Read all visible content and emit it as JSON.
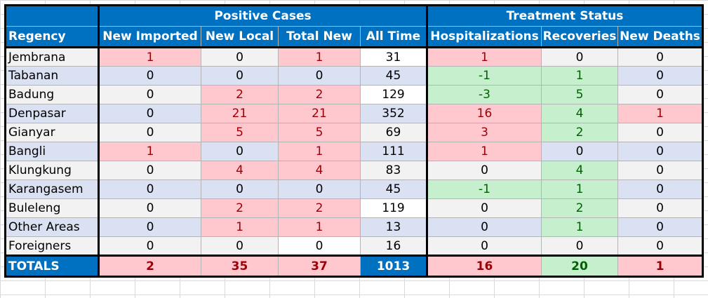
{
  "header": {
    "positive_cases": "Positive Cases",
    "treatment_status": "Treatment Status"
  },
  "columns": [
    "Regency",
    "New Imported",
    "New Local",
    "Total New",
    "All Time",
    "Hospitalizations",
    "Recoveries",
    "New Deaths"
  ],
  "rows": [
    {
      "regency": "Jembrana",
      "values": [
        "1",
        "0",
        "1",
        "31",
        "1",
        "0",
        "0"
      ]
    },
    {
      "regency": "Tabanan",
      "values": [
        "0",
        "0",
        "0",
        "45",
        "-1",
        "1",
        "0"
      ]
    },
    {
      "regency": "Badung",
      "values": [
        "0",
        "2",
        "2",
        "129",
        "-3",
        "5",
        "0"
      ]
    },
    {
      "regency": "Denpasar",
      "values": [
        "0",
        "21",
        "21",
        "352",
        "16",
        "4",
        "1"
      ]
    },
    {
      "regency": "Gianyar",
      "values": [
        "0",
        "5",
        "5",
        "69",
        "3",
        "2",
        "0"
      ]
    },
    {
      "regency": "Bangli",
      "values": [
        "1",
        "0",
        "1",
        "111",
        "1",
        "0",
        "0"
      ]
    },
    {
      "regency": "Klungkung",
      "values": [
        "0",
        "4",
        "4",
        "83",
        "0",
        "4",
        "0"
      ]
    },
    {
      "regency": "Karangasem",
      "values": [
        "0",
        "0",
        "0",
        "45",
        "-1",
        "1",
        "0"
      ]
    },
    {
      "regency": "Buleleng",
      "values": [
        "0",
        "2",
        "2",
        "119",
        "0",
        "2",
        "0"
      ]
    },
    {
      "regency": "Other Areas",
      "values": [
        "0",
        "1",
        "1",
        "13",
        "0",
        "1",
        "0"
      ]
    },
    {
      "regency": "Foreigners",
      "values": [
        "0",
        "0",
        "0",
        "16",
        "0",
        "0",
        "0"
      ]
    }
  ],
  "totals": {
    "label": "TOTALS",
    "values": [
      "2",
      "35",
      "37",
      "1013",
      "16",
      "20",
      "1"
    ]
  },
  "colors": {
    "header_blue": "#0070c0",
    "row_grey": "#f2f2f2",
    "row_blue": "#d9e1f2",
    "highlight_red_fill": "#ffc7ce",
    "highlight_red_text": "#9c0006",
    "highlight_green_fill": "#c6efce",
    "highlight_green_text": "#006100"
  }
}
